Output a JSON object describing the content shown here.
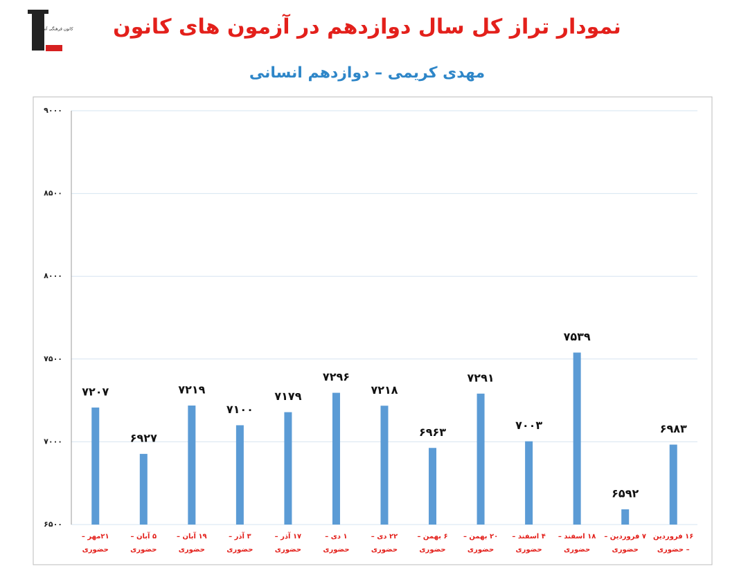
{
  "logo_text": "کانون فرهنگی آموزش",
  "chart_data": {
    "type": "bar",
    "title": "نمودار تراز کل سال دوازدهم در آزمون های کانون",
    "subtitle": "مهدی کریمی – دوازدهم انسانی",
    "categories": [
      "۲۱مهر – حضوری",
      "۵ آبان – حضوری",
      "۱۹ آبان – حضوری",
      "۳ آذر – حضوری",
      "۱۷ آذر – حضوری",
      "۱ دی – حضوری",
      "۲۲ دی – حضوری",
      "۶ بهمن – حضوری",
      "۲۰ بهمن – حضوری",
      "۴ اسفند – حضوری",
      "۱۸ اسفند – حضوری",
      "۷ فروردین – حضوری",
      "۱۶ فروردین – حضوری"
    ],
    "values": [
      7207,
      6927,
      7219,
      7100,
      7179,
      7296,
      7218,
      6963,
      7291,
      7003,
      7539,
      6592,
      6983
    ],
    "value_labels": [
      "۷۲۰۷",
      "۶۹۲۷",
      "۷۲۱۹",
      "۷۱۰۰",
      "۷۱۷۹",
      "۷۲۹۶",
      "۷۲۱۸",
      "۶۹۶۳",
      "۷۲۹۱",
      "۷۰۰۳",
      "۷۵۳۹",
      "۶۵۹۲",
      "۶۹۸۳"
    ],
    "color": "#5b9bd5",
    "ylim": [
      6500,
      9000
    ],
    "yticks": [
      {
        "value": 6500,
        "label": "۶۵۰۰"
      },
      {
        "value": 7000,
        "label": "۷۰۰۰"
      },
      {
        "value": 7500,
        "label": "۷۵۰۰"
      },
      {
        "value": 8000,
        "label": "۸۰۰۰"
      },
      {
        "value": 8500,
        "label": "۸۵۰۰"
      },
      {
        "value": 9000,
        "label": "۹۰۰۰"
      }
    ],
    "grid": true
  }
}
